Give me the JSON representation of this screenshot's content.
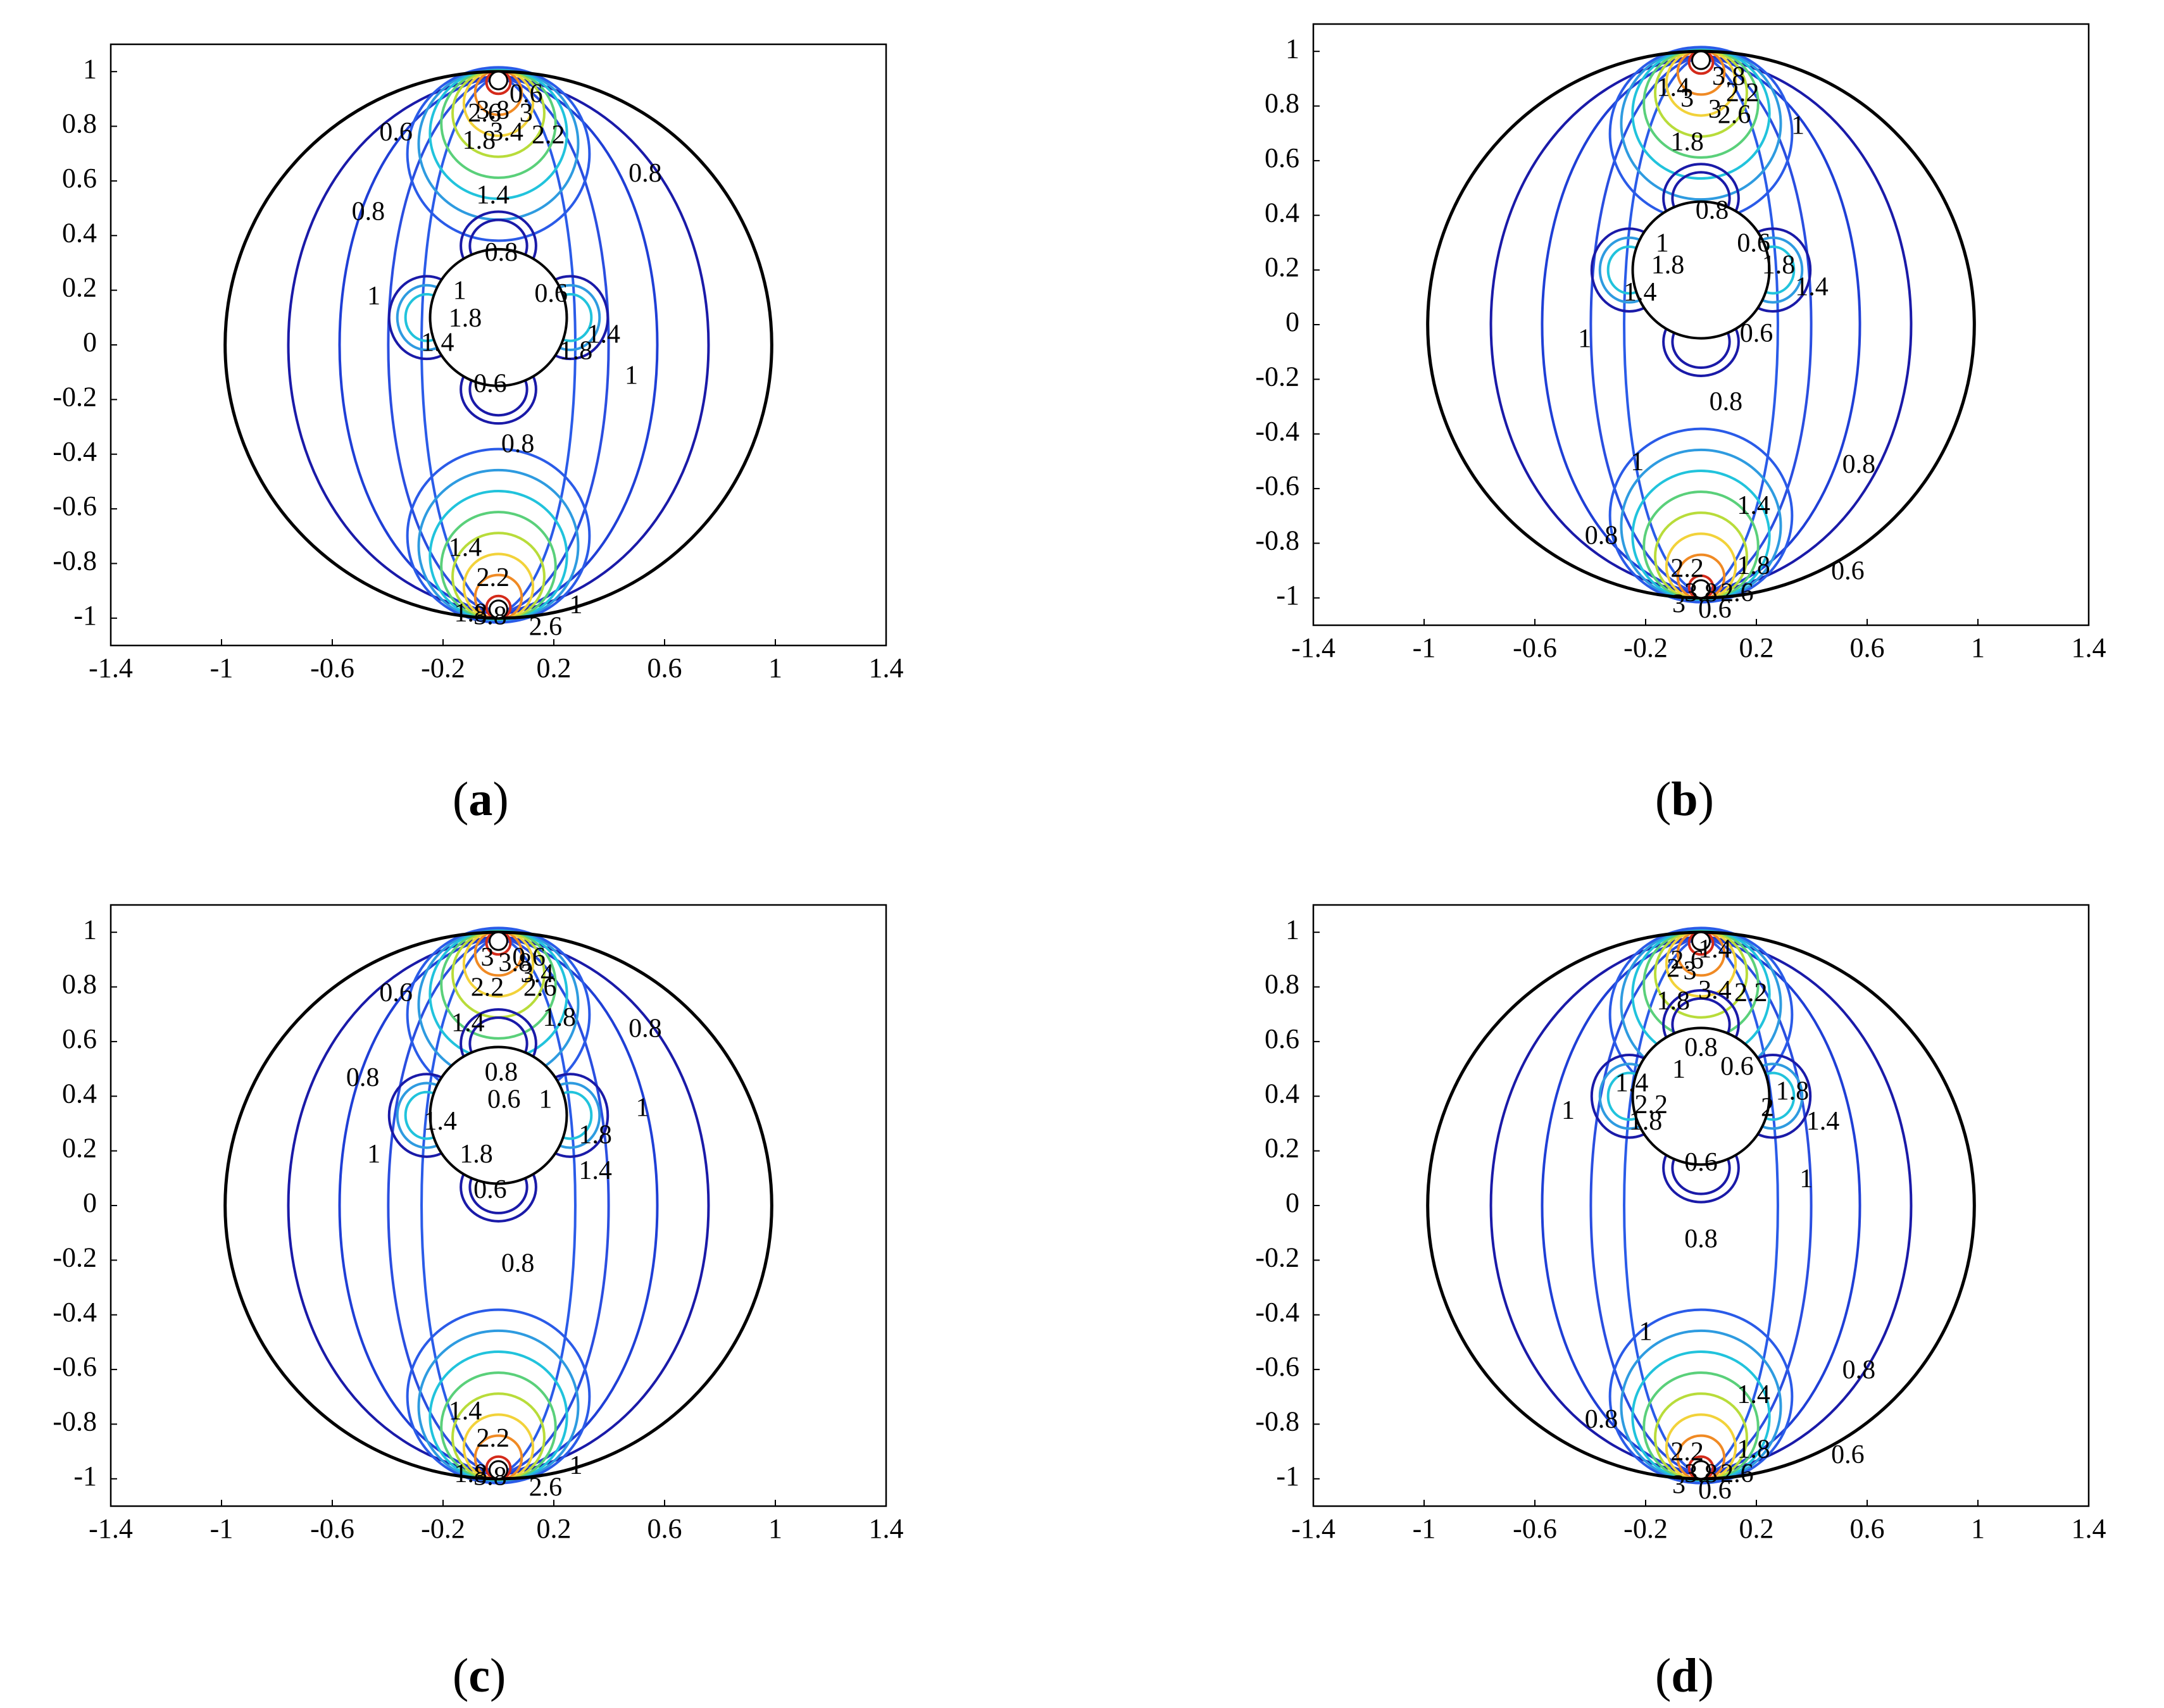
{
  "figure": {
    "panels": [
      {
        "id": "a",
        "caption": "a"
      },
      {
        "id": "b",
        "caption": "b"
      },
      {
        "id": "c",
        "caption": "c"
      },
      {
        "id": "d",
        "caption": "d"
      }
    ]
  },
  "chart_data": [
    {
      "panel": "a",
      "type": "contour",
      "title": "",
      "xlabel": "",
      "ylabel": "",
      "xlim": [
        -1.4,
        1.4
      ],
      "ylim": [
        -1.1,
        1.1
      ],
      "xticks": [
        -1.4,
        -1,
        -0.6,
        -0.2,
        0.2,
        0.6,
        1,
        1.4
      ],
      "yticks": [
        1,
        0.8,
        0.6,
        0.4,
        0.2,
        0,
        -0.2,
        -0.4,
        -0.6,
        -0.8,
        -1
      ],
      "outer_boundary": {
        "cx": 0,
        "cy": 0,
        "r": 1
      },
      "inner_cylinder": {
        "cx": 0,
        "cy": 0.1,
        "r": 0.25
      },
      "contour_labels": [
        {
          "text": "0.6",
          "x": -0.37,
          "y": 0.77
        },
        {
          "text": "0.8",
          "x": -0.47,
          "y": 0.48
        },
        {
          "text": "1",
          "x": -0.45,
          "y": 0.17
        },
        {
          "text": "1.4",
          "x": -0.02,
          "y": 0.54
        },
        {
          "text": "1.8",
          "x": -0.07,
          "y": 0.74
        },
        {
          "text": "2.2",
          "x": 0.18,
          "y": 0.76
        },
        {
          "text": "3.4",
          "x": 0.03,
          "y": 0.77
        },
        {
          "text": "2.6",
          "x": -0.05,
          "y": 0.84
        },
        {
          "text": "3.8",
          "x": -0.02,
          "y": 0.85
        },
        {
          "text": "3",
          "x": 0.1,
          "y": 0.84
        },
        {
          "text": "0.6",
          "x": 0.1,
          "y": 0.91
        },
        {
          "text": "0.8",
          "x": 0.53,
          "y": 0.62
        },
        {
          "text": "0.8",
          "x": 0.01,
          "y": 0.33
        },
        {
          "text": "0.6",
          "x": 0.19,
          "y": 0.18
        },
        {
          "text": "1",
          "x": -0.14,
          "y": 0.19
        },
        {
          "text": "1.8",
          "x": -0.12,
          "y": 0.09
        },
        {
          "text": "1.4",
          "x": -0.22,
          "y": 0.0
        },
        {
          "text": "1.4",
          "x": 0.38,
          "y": 0.03
        },
        {
          "text": "1.8",
          "x": 0.28,
          "y": -0.03
        },
        {
          "text": "1",
          "x": 0.48,
          "y": -0.12
        },
        {
          "text": "0.6",
          "x": -0.03,
          "y": -0.15
        },
        {
          "text": "0.8",
          "x": 0.07,
          "y": -0.37
        },
        {
          "text": "1.4",
          "x": -0.12,
          "y": -0.75
        },
        {
          "text": "2.2",
          "x": -0.02,
          "y": -0.86
        },
        {
          "text": "1",
          "x": 0.28,
          "y": -0.96
        },
        {
          "text": "1.8",
          "x": -0.1,
          "y": -0.99
        },
        {
          "text": "3.8",
          "x": -0.03,
          "y": -1.0
        },
        {
          "text": "2.6",
          "x": 0.17,
          "y": -1.04
        }
      ]
    },
    {
      "panel": "b",
      "type": "contour",
      "title": "",
      "xlabel": "",
      "ylabel": "",
      "xlim": [
        -1.4,
        1.4
      ],
      "ylim": [
        -1.1,
        1.1
      ],
      "xticks": [
        -1.4,
        -1,
        -0.6,
        -0.2,
        0.2,
        0.6,
        1,
        1.4
      ],
      "yticks": [
        1,
        0.8,
        0.6,
        0.4,
        0.2,
        0,
        -0.2,
        -0.4,
        -0.6,
        -0.8,
        -1
      ],
      "outer_boundary": {
        "cx": 0,
        "cy": 0,
        "r": 1
      },
      "inner_cylinder": {
        "cx": 0,
        "cy": 0.2,
        "r": 0.25
      },
      "contour_labels": [
        {
          "text": "1.4",
          "x": -0.1,
          "y": 0.86
        },
        {
          "text": "3",
          "x": -0.05,
          "y": 0.82
        },
        {
          "text": "3",
          "x": 0.05,
          "y": 0.78
        },
        {
          "text": "3.8",
          "x": 0.1,
          "y": 0.9
        },
        {
          "text": "2.2",
          "x": 0.15,
          "y": 0.84
        },
        {
          "text": "2.6",
          "x": 0.12,
          "y": 0.76
        },
        {
          "text": "1",
          "x": 0.35,
          "y": 0.72
        },
        {
          "text": "1.8",
          "x": -0.05,
          "y": 0.66
        },
        {
          "text": "0.8",
          "x": 0.04,
          "y": 0.41
        },
        {
          "text": "0.6",
          "x": 0.19,
          "y": 0.29
        },
        {
          "text": "1",
          "x": -0.14,
          "y": 0.29
        },
        {
          "text": "1.8",
          "x": -0.12,
          "y": 0.21
        },
        {
          "text": "1.4",
          "x": -0.22,
          "y": 0.11
        },
        {
          "text": "1.8",
          "x": 0.28,
          "y": 0.21
        },
        {
          "text": "1.4",
          "x": 0.4,
          "y": 0.13
        },
        {
          "text": "1",
          "x": -0.42,
          "y": -0.06
        },
        {
          "text": "0.6",
          "x": 0.2,
          "y": -0.04
        },
        {
          "text": "0.8",
          "x": 0.09,
          "y": -0.29
        },
        {
          "text": "1",
          "x": -0.23,
          "y": -0.51
        },
        {
          "text": "0.8",
          "x": 0.57,
          "y": -0.52
        },
        {
          "text": "1.4",
          "x": 0.19,
          "y": -0.67
        },
        {
          "text": "0.8",
          "x": -0.36,
          "y": -0.78
        },
        {
          "text": "1.8",
          "x": 0.19,
          "y": -0.89
        },
        {
          "text": "0.6",
          "x": 0.53,
          "y": -0.91
        },
        {
          "text": "2.2",
          "x": -0.05,
          "y": -0.9
        },
        {
          "text": "2.6",
          "x": 0.13,
          "y": -0.99
        },
        {
          "text": "3.8",
          "x": 0.0,
          "y": -0.99
        },
        {
          "text": "3",
          "x": -0.08,
          "y": -1.03
        },
        {
          "text": "0.6",
          "x": 0.05,
          "y": -1.05
        }
      ]
    },
    {
      "panel": "c",
      "type": "contour",
      "title": "",
      "xlabel": "",
      "ylabel": "",
      "xlim": [
        -1.4,
        1.4
      ],
      "ylim": [
        -1.1,
        1.1
      ],
      "xticks": [
        -1.4,
        -1,
        -0.6,
        -0.2,
        0.2,
        0.6,
        1,
        1.4
      ],
      "yticks": [
        1,
        0.8,
        0.6,
        0.4,
        0.2,
        0,
        -0.2,
        -0.4,
        -0.6,
        -0.8,
        -1
      ],
      "outer_boundary": {
        "cx": 0,
        "cy": 0,
        "r": 1
      },
      "inner_cylinder": {
        "cx": 0,
        "cy": 0.33,
        "r": 0.25
      },
      "contour_labels": [
        {
          "text": "0.6",
          "x": -0.37,
          "y": 0.77
        },
        {
          "text": "0.8",
          "x": -0.49,
          "y": 0.46
        },
        {
          "text": "1",
          "x": -0.45,
          "y": 0.18
        },
        {
          "text": "1.4",
          "x": -0.11,
          "y": 0.66
        },
        {
          "text": "2.2",
          "x": -0.04,
          "y": 0.79
        },
        {
          "text": "2.6",
          "x": 0.15,
          "y": 0.79
        },
        {
          "text": "3",
          "x": -0.04,
          "y": 0.9
        },
        {
          "text": "0.6",
          "x": 0.11,
          "y": 0.9
        },
        {
          "text": "3.8",
          "x": 0.06,
          "y": 0.88
        },
        {
          "text": "3.4",
          "x": 0.14,
          "y": 0.84
        },
        {
          "text": "1.8",
          "x": 0.22,
          "y": 0.68
        },
        {
          "text": "0.8",
          "x": 0.53,
          "y": 0.64
        },
        {
          "text": "0.8",
          "x": 0.01,
          "y": 0.48
        },
        {
          "text": "0.6",
          "x": 0.02,
          "y": 0.38
        },
        {
          "text": "1",
          "x": 0.17,
          "y": 0.38
        },
        {
          "text": "1",
          "x": 0.52,
          "y": 0.35
        },
        {
          "text": "1.4",
          "x": -0.21,
          "y": 0.3
        },
        {
          "text": "1.8",
          "x": 0.35,
          "y": 0.25
        },
        {
          "text": "1.8",
          "x": -0.08,
          "y": 0.18
        },
        {
          "text": "1.4",
          "x": 0.35,
          "y": 0.12
        },
        {
          "text": "0.6",
          "x": -0.03,
          "y": 0.05
        },
        {
          "text": "0.8",
          "x": 0.07,
          "y": -0.22
        },
        {
          "text": "1.4",
          "x": -0.12,
          "y": -0.76
        },
        {
          "text": "2.2",
          "x": -0.02,
          "y": -0.86
        },
        {
          "text": "1",
          "x": 0.28,
          "y": -0.96
        },
        {
          "text": "1.8",
          "x": -0.1,
          "y": -0.99
        },
        {
          "text": "3.8",
          "x": -0.03,
          "y": -1.0
        },
        {
          "text": "2.6",
          "x": 0.17,
          "y": -1.04
        }
      ]
    },
    {
      "panel": "d",
      "type": "contour",
      "title": "",
      "xlabel": "",
      "ylabel": "",
      "xlim": [
        -1.4,
        1.4
      ],
      "ylim": [
        -1.1,
        1.1
      ],
      "xticks": [
        -1.4,
        -1,
        -0.6,
        -0.2,
        0.2,
        0.6,
        1,
        1.4
      ],
      "yticks": [
        1,
        0.8,
        0.6,
        0.4,
        0.2,
        0,
        -0.2,
        -0.4,
        -0.6,
        -0.8,
        -1
      ],
      "outer_boundary": {
        "cx": 0,
        "cy": 0,
        "r": 1
      },
      "inner_cylinder": {
        "cx": 0,
        "cy": 0.4,
        "r": 0.25
      },
      "contour_labels": [
        {
          "text": "1.4",
          "x": 0.05,
          "y": 0.93
        },
        {
          "text": "2.6",
          "x": -0.05,
          "y": 0.89
        },
        {
          "text": "2",
          "x": -0.1,
          "y": 0.86
        },
        {
          "text": "3",
          "x": -0.04,
          "y": 0.85
        },
        {
          "text": "3.4",
          "x": 0.05,
          "y": 0.78
        },
        {
          "text": "2.2",
          "x": 0.18,
          "y": 0.77
        },
        {
          "text": "1.8",
          "x": -0.1,
          "y": 0.74
        },
        {
          "text": "0.8",
          "x": 0.0,
          "y": 0.57
        },
        {
          "text": "0.6",
          "x": 0.13,
          "y": 0.5
        },
        {
          "text": "1",
          "x": -0.08,
          "y": 0.49
        },
        {
          "text": "1.4",
          "x": -0.25,
          "y": 0.44
        },
        {
          "text": "2.2",
          "x": -0.18,
          "y": 0.36
        },
        {
          "text": "1.8",
          "x": 0.33,
          "y": 0.41
        },
        {
          "text": "2",
          "x": 0.24,
          "y": 0.35
        },
        {
          "text": "1",
          "x": -0.48,
          "y": 0.34
        },
        {
          "text": "1.4",
          "x": 0.44,
          "y": 0.3
        },
        {
          "text": "1.8",
          "x": -0.2,
          "y": 0.3
        },
        {
          "text": "0.6",
          "x": 0.0,
          "y": 0.15
        },
        {
          "text": "1",
          "x": 0.38,
          "y": 0.09
        },
        {
          "text": "0.8",
          "x": 0.0,
          "y": -0.13
        },
        {
          "text": "1",
          "x": -0.2,
          "y": -0.47
        },
        {
          "text": "0.8",
          "x": 0.57,
          "y": -0.61
        },
        {
          "text": "1.4",
          "x": 0.19,
          "y": -0.7
        },
        {
          "text": "0.8",
          "x": -0.36,
          "y": -0.79
        },
        {
          "text": "1.8",
          "x": 0.19,
          "y": -0.9
        },
        {
          "text": "0.6",
          "x": 0.53,
          "y": -0.92
        },
        {
          "text": "2.2",
          "x": -0.05,
          "y": -0.91
        },
        {
          "text": "2.6",
          "x": 0.13,
          "y": -0.99
        },
        {
          "text": "3.8",
          "x": 0.0,
          "y": -0.99
        },
        {
          "text": "3",
          "x": -0.08,
          "y": -1.03
        },
        {
          "text": "0.6",
          "x": 0.05,
          "y": -1.05
        }
      ]
    }
  ]
}
